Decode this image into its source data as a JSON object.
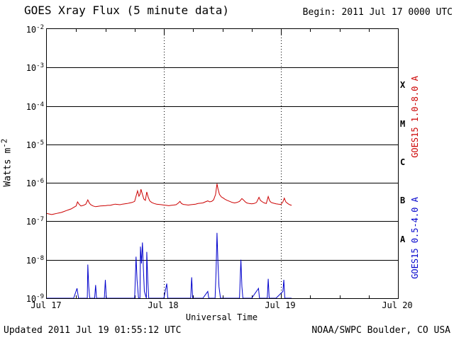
{
  "header": {
    "title": "GOES Xray Flux (5 minute data)",
    "begin_label": "Begin:  2011 Jul 17 0000 UTC"
  },
  "footer": {
    "updated": "Updated 2011 Jul 19 01:55:12 UTC",
    "source": "NOAA/SWPC Boulder, CO USA"
  },
  "axes": {
    "ylabel_base": "Watts m",
    "ylabel_exp": "-2",
    "xlabel": "Universal Time",
    "x_ticks": [
      "Jul 17",
      "Jul 18",
      "Jul 19",
      "Jul 20"
    ],
    "x_tick_hours": [
      0,
      24,
      48,
      72
    ],
    "y_tick_exponents": [
      -2,
      -3,
      -4,
      -5,
      -6,
      -7,
      -8,
      -9
    ],
    "flare_classes": [
      "X",
      "M",
      "C",
      "B",
      "A"
    ]
  },
  "right_labels": {
    "long_channel": "GOES15 1.0-8.0 A",
    "short_channel": "GOES15 0.5-4.0 A"
  },
  "colors": {
    "long_channel": "#cc0000",
    "short_channel": "#0000cc",
    "grid": "#000000",
    "axis": "#000000"
  },
  "chart_data": {
    "type": "line",
    "title": "GOES Xray Flux (5 minute data)",
    "xlabel": "Universal Time",
    "ylabel": "Watts m^-2",
    "x_unit": "hours since 2011 Jul 17 0000 UTC",
    "xlim": [
      0,
      72
    ],
    "ylim_log10": [
      -9,
      -2
    ],
    "grid_decades": [
      -3,
      -4,
      -5,
      -6,
      -7,
      -8
    ],
    "day_boundary_hours": [
      24,
      48
    ],
    "minor_tick_hours": 6,
    "legend_position": "right-rotated",
    "series": [
      {
        "name": "GOES15 1.0-8.0 A",
        "color": "#cc0000",
        "points": [
          [
            0,
            1.6e-07
          ],
          [
            0.5,
            1.55e-07
          ],
          [
            1,
            1.5e-07
          ],
          [
            1.5,
            1.55e-07
          ],
          [
            2,
            1.6e-07
          ],
          [
            2.5,
            1.65e-07
          ],
          [
            3,
            1.7e-07
          ],
          [
            3.5,
            1.8e-07
          ],
          [
            4,
            1.9e-07
          ],
          [
            4.5,
            2e-07
          ],
          [
            5,
            2.1e-07
          ],
          [
            5.5,
            2.3e-07
          ],
          [
            6,
            2.5e-07
          ],
          [
            6.3,
            3.2e-07
          ],
          [
            6.6,
            2.8e-07
          ],
          [
            7,
            2.5e-07
          ],
          [
            7.5,
            2.6e-07
          ],
          [
            8,
            2.8e-07
          ],
          [
            8.4,
            3.6e-07
          ],
          [
            8.7,
            3e-07
          ],
          [
            9,
            2.7e-07
          ],
          [
            9.5,
            2.5e-07
          ],
          [
            10,
            2.4e-07
          ],
          [
            10.5,
            2.45e-07
          ],
          [
            11,
            2.5e-07
          ],
          [
            12,
            2.55e-07
          ],
          [
            12.5,
            2.6e-07
          ],
          [
            13,
            2.6e-07
          ],
          [
            13.5,
            2.7e-07
          ],
          [
            14,
            2.8e-07
          ],
          [
            14.5,
            2.75e-07
          ],
          [
            15,
            2.7e-07
          ],
          [
            15.5,
            2.8e-07
          ],
          [
            16,
            2.85e-07
          ],
          [
            16.5,
            2.9e-07
          ],
          [
            17,
            3e-07
          ],
          [
            17.5,
            3.1e-07
          ],
          [
            18,
            3.3e-07
          ],
          [
            18.3,
            4.5e-07
          ],
          [
            18.6,
            6.2e-07
          ],
          [
            18.9,
            4.5e-07
          ],
          [
            19.1,
            5e-07
          ],
          [
            19.3,
            6.8e-07
          ],
          [
            19.6,
            5e-07
          ],
          [
            19.9,
            3.8e-07
          ],
          [
            20.2,
            3.5e-07
          ],
          [
            20.5,
            5.8e-07
          ],
          [
            20.8,
            4.2e-07
          ],
          [
            21.1,
            3.4e-07
          ],
          [
            21.5,
            3.1e-07
          ],
          [
            22,
            2.9e-07
          ],
          [
            22.5,
            2.8e-07
          ],
          [
            23,
            2.75e-07
          ],
          [
            23.5,
            2.7e-07
          ],
          [
            24,
            2.65e-07
          ],
          [
            24.5,
            2.6e-07
          ],
          [
            25,
            2.55e-07
          ],
          [
            25.5,
            2.6e-07
          ],
          [
            26,
            2.65e-07
          ],
          [
            26.5,
            2.7e-07
          ],
          [
            27,
            3e-07
          ],
          [
            27.3,
            3.3e-07
          ],
          [
            27.6,
            2.9e-07
          ],
          [
            28,
            2.75e-07
          ],
          [
            28.5,
            2.7e-07
          ],
          [
            29,
            2.65e-07
          ],
          [
            29.5,
            2.7e-07
          ],
          [
            30,
            2.75e-07
          ],
          [
            30.5,
            2.8e-07
          ],
          [
            31,
            2.9e-07
          ],
          [
            31.5,
            2.95e-07
          ],
          [
            32,
            3e-07
          ],
          [
            32.5,
            3.2e-07
          ],
          [
            33,
            3.4e-07
          ],
          [
            33.4,
            3.2e-07
          ],
          [
            33.8,
            3.3e-07
          ],
          [
            34.2,
            3.6e-07
          ],
          [
            34.6,
            5e-07
          ],
          [
            34.9,
            9.5e-07
          ],
          [
            35.1,
            7e-07
          ],
          [
            35.4,
            5e-07
          ],
          [
            35.8,
            4.3e-07
          ],
          [
            36.2,
            4e-07
          ],
          [
            36.6,
            3.7e-07
          ],
          [
            37,
            3.5e-07
          ],
          [
            37.5,
            3.3e-07
          ],
          [
            38,
            3.1e-07
          ],
          [
            38.5,
            3e-07
          ],
          [
            39,
            3.1e-07
          ],
          [
            39.5,
            3.3e-07
          ],
          [
            40,
            3.9e-07
          ],
          [
            40.3,
            3.6e-07
          ],
          [
            40.7,
            3.2e-07
          ],
          [
            41,
            3e-07
          ],
          [
            41.5,
            2.9e-07
          ],
          [
            42,
            2.85e-07
          ],
          [
            42.5,
            2.9e-07
          ],
          [
            43,
            3.1e-07
          ],
          [
            43.5,
            4.2e-07
          ],
          [
            43.8,
            3.5e-07
          ],
          [
            44.2,
            3.2e-07
          ],
          [
            44.6,
            3e-07
          ],
          [
            45,
            2.9e-07
          ],
          [
            45.4,
            4.4e-07
          ],
          [
            45.7,
            3.4e-07
          ],
          [
            46,
            3.1e-07
          ],
          [
            46.5,
            2.95e-07
          ],
          [
            47,
            2.85e-07
          ],
          [
            47.5,
            2.8e-07
          ],
          [
            48,
            2.75e-07
          ],
          [
            48.4,
            3.2e-07
          ],
          [
            48.7,
            4e-07
          ],
          [
            49,
            3.2e-07
          ],
          [
            49.4,
            2.9e-07
          ],
          [
            49.8,
            2.7e-07
          ],
          [
            50.2,
            2.6e-07
          ]
        ]
      },
      {
        "name": "GOES15 0.5-4.0 A",
        "color": "#0000cc",
        "points": [
          [
            0,
            1e-09
          ],
          [
            2,
            1e-09
          ],
          [
            4,
            1e-09
          ],
          [
            5.5,
            1e-09
          ],
          [
            6.2,
            1.8e-09
          ],
          [
            6.5,
            1e-09
          ],
          [
            8.3,
            1e-09
          ],
          [
            8.4,
            7.5e-09
          ],
          [
            8.6,
            2e-09
          ],
          [
            8.8,
            1e-09
          ],
          [
            9.8,
            1e-09
          ],
          [
            10,
            2.2e-09
          ],
          [
            10.2,
            1e-09
          ],
          [
            11.8,
            1e-09
          ],
          [
            12,
            3e-09
          ],
          [
            12.2,
            1e-09
          ],
          [
            14,
            1e-09
          ],
          [
            16,
            1e-09
          ],
          [
            18,
            1e-09
          ],
          [
            18.3,
            1.2e-08
          ],
          [
            18.5,
            3e-09
          ],
          [
            18.8,
            1e-09
          ],
          [
            19.1,
            1e-09
          ],
          [
            19.2,
            2.2e-08
          ],
          [
            19.4,
            8e-09
          ],
          [
            19.6,
            2.8e-08
          ],
          [
            19.8,
            6e-09
          ],
          [
            20,
            1.5e-09
          ],
          [
            20.4,
            1e-09
          ],
          [
            20.5,
            1.6e-08
          ],
          [
            20.7,
            3e-09
          ],
          [
            20.9,
            1e-09
          ],
          [
            22,
            1e-09
          ],
          [
            24,
            1e-09
          ],
          [
            24.6,
            2.4e-09
          ],
          [
            24.8,
            1e-09
          ],
          [
            26,
            1e-09
          ],
          [
            28,
            1e-09
          ],
          [
            29.5,
            1e-09
          ],
          [
            29.7,
            3.5e-09
          ],
          [
            29.9,
            1e-09
          ],
          [
            31,
            1e-09
          ],
          [
            32,
            1e-09
          ],
          [
            33,
            1.5e-09
          ],
          [
            33.2,
            1e-09
          ],
          [
            34.5,
            1e-09
          ],
          [
            34.7,
            5e-09
          ],
          [
            34.9,
            5e-08
          ],
          [
            35.1,
            8e-09
          ],
          [
            35.3,
            2e-09
          ],
          [
            35.6,
            1e-09
          ],
          [
            37,
            1e-09
          ],
          [
            39.5,
            1e-09
          ],
          [
            39.8,
            1e-08
          ],
          [
            40,
            2e-09
          ],
          [
            40.2,
            1e-09
          ],
          [
            42,
            1e-09
          ],
          [
            43.4,
            1.8e-09
          ],
          [
            43.6,
            1e-09
          ],
          [
            45.2,
            1e-09
          ],
          [
            45.4,
            3.2e-09
          ],
          [
            45.6,
            1e-09
          ],
          [
            47,
            1e-09
          ],
          [
            48.4,
            1.5e-09
          ],
          [
            48.6,
            3e-09
          ],
          [
            48.8,
            1e-09
          ],
          [
            49.5,
            1e-09
          ],
          [
            50.2,
            1e-09
          ]
        ]
      }
    ]
  }
}
